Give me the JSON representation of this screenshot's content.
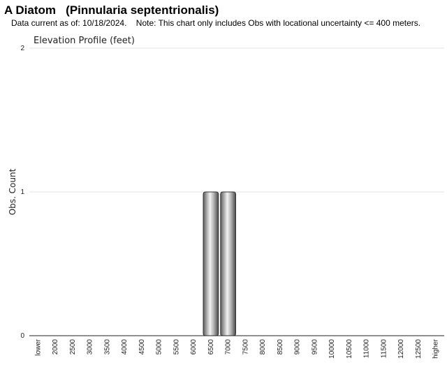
{
  "header": {
    "title": "A Diatom   (Pinnularia septentrionalis)",
    "subtitle": "Data current as of: 10/18/2024.    Note: This chart only includes Obs with locational uncertainty <= 400 meters."
  },
  "chart_data": {
    "type": "bar",
    "title": "Elevation Profile (feet)",
    "xlabel": "",
    "ylabel": "Obs. Count",
    "ylim": [
      0,
      2
    ],
    "yticks": [
      0,
      1,
      2
    ],
    "grid": true,
    "categories": [
      "lower",
      "2000",
      "2500",
      "3000",
      "3500",
      "4000",
      "4500",
      "5000",
      "5500",
      "6000",
      "6500",
      "7000",
      "7500",
      "8000",
      "8500",
      "9000",
      "9500",
      "10000",
      "10500",
      "11000",
      "11500",
      "12000",
      "12500",
      "higher"
    ],
    "values": [
      0,
      0,
      0,
      0,
      0,
      0,
      0,
      0,
      0,
      0,
      1,
      1,
      0,
      0,
      0,
      0,
      0,
      0,
      0,
      0,
      0,
      0,
      0,
      0
    ]
  }
}
